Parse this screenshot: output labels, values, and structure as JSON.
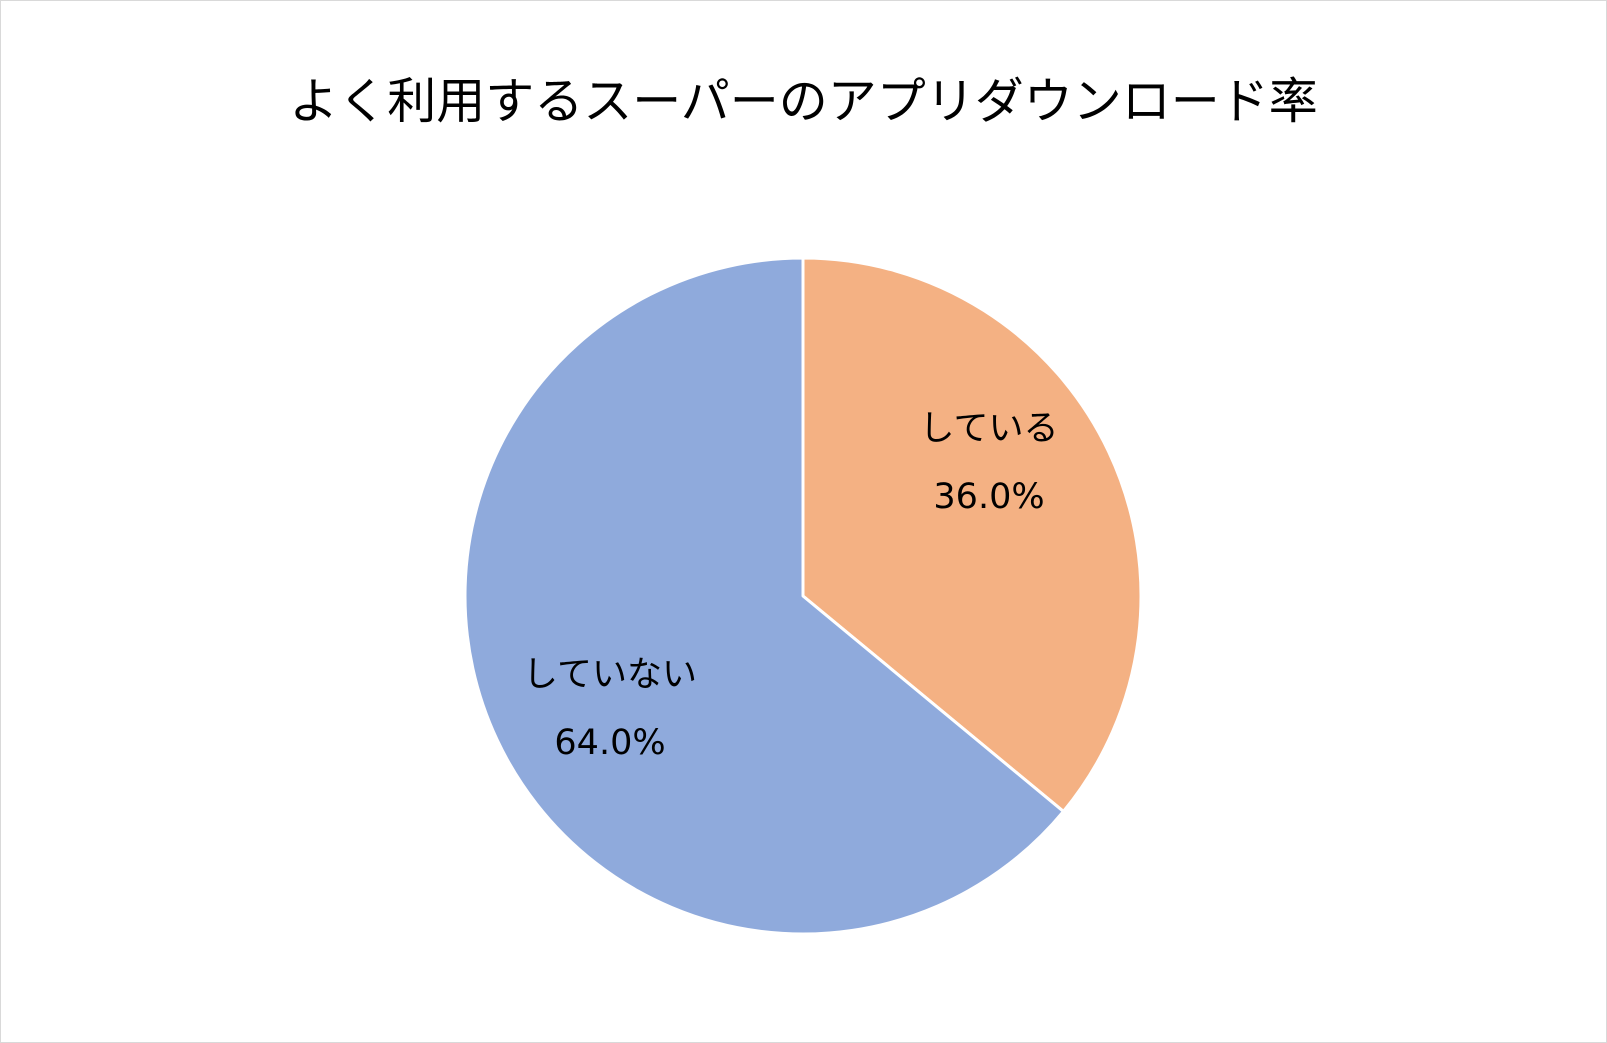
{
  "chart_data": {
    "type": "pie",
    "title": "よく利用するスーパーのアプリダウンロード率",
    "start_angle_deg": 0,
    "direction": "clockwise",
    "slices": [
      {
        "label": "している",
        "value": 36.0,
        "value_label": "36.0%",
        "color": "#F4B183"
      },
      {
        "label": "していない",
        "value": 64.0,
        "value_label": "64.0%",
        "color": "#8FAADC"
      }
    ],
    "slice_border_color": "#FFFFFF",
    "legend": "none"
  }
}
